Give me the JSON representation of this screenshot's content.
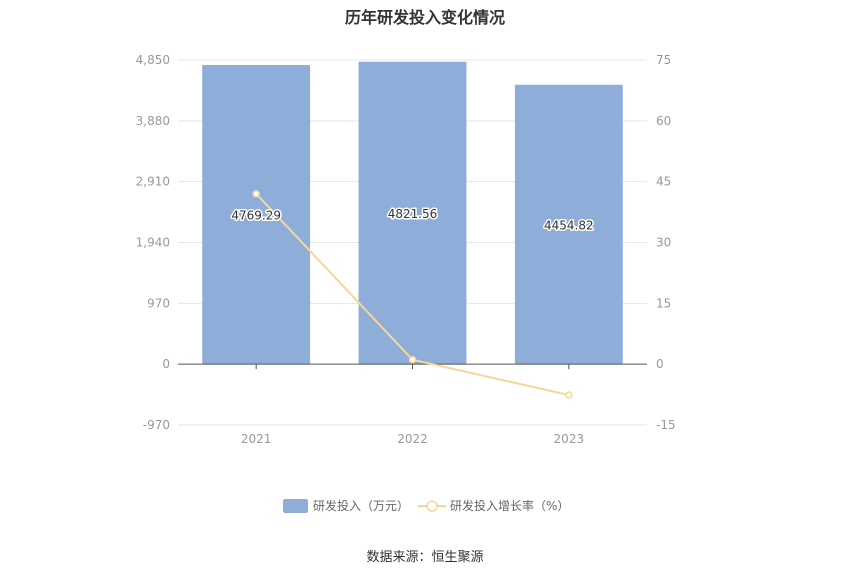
{
  "chart_data": {
    "type": "bar",
    "title": "历年研发投入变化情况",
    "categories": [
      "2021",
      "2022",
      "2023"
    ],
    "series": [
      {
        "name": "研发投入（万元）",
        "type": "bar",
        "axis": "left",
        "values": [
          4769.29,
          4821.56,
          4454.82
        ],
        "labels": [
          "4769.29",
          "4821.56",
          "4454.82"
        ]
      },
      {
        "name": "研发投入增长率（%）",
        "type": "line",
        "axis": "right",
        "values": [
          42.0,
          1.1,
          -7.6
        ]
      }
    ],
    "left_axis": {
      "min": -970,
      "max": 4850,
      "ticks": [
        4850,
        3880,
        2910,
        1940,
        970,
        0,
        -970
      ],
      "tick_labels": [
        "4,850",
        "3,880",
        "2,910",
        "1,940",
        "970",
        "0",
        "-970"
      ]
    },
    "right_axis": {
      "min": -15,
      "max": 75,
      "ticks": [
        75,
        60,
        45,
        30,
        15,
        0,
        -15
      ],
      "tick_labels": [
        "75",
        "60",
        "45",
        "30",
        "15",
        "0",
        "-15"
      ]
    },
    "grid": true,
    "legend_position": "bottom",
    "colors": {
      "bar": "#8eadd9",
      "line": "#f7d699",
      "grid": "#e6e6e6",
      "axis": "#555555",
      "text": "#999999"
    }
  },
  "source_text": "数据来源：恒生聚源"
}
